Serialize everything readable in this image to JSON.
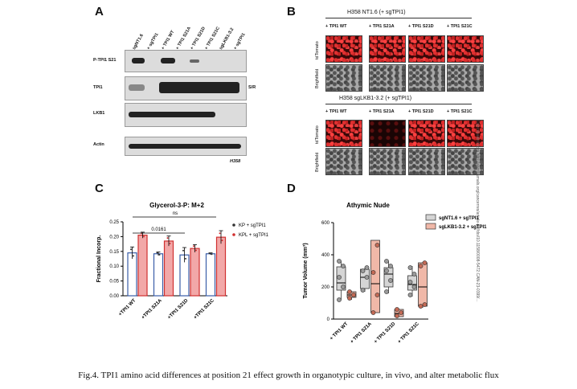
{
  "panels": {
    "a": {
      "letter": "A",
      "lanes": [
        "sgNT1.6",
        "+ sgTPI1",
        "+ TPI1 WT",
        "+ TPI1 S21A",
        "+ TPI1 S21D",
        "+ TPI1 S21C",
        "sgLKB1-3.2",
        "+ sgTPI1"
      ],
      "rows": [
        "P-TPI1 S21",
        "TPI1",
        "LKB1",
        "Actin"
      ],
      "sr_label": "S/R",
      "cell_line": "H358"
    },
    "b": {
      "letter": "B",
      "top_title": "H358 NT1.6 (+ sgTPI1)",
      "bottom_title": "H358 sgLKB1-3.2 (+ sgTPI1)",
      "columns": [
        "+ TPI1 WT",
        "+ TPI1 S21A",
        "+ TPI1 S21D",
        "+ TPI1 S21C"
      ],
      "row_labels": [
        "tdTomato",
        "Brightfield"
      ]
    },
    "c": {
      "letter": "C",
      "title": "Glycerol-3-P: M+2",
      "ylabel": "Fractional Incorp.",
      "ns_label": "ns",
      "p_value": "0.0161",
      "legend": [
        "KP + sgTPI1",
        "KPL + sgTPI1"
      ]
    },
    "d": {
      "letter": "D",
      "title": "Athymic Nude",
      "ylabel": "Tumor Volume (mm³)",
      "legend": [
        "sgNT1.6 + sgTPI1",
        "sgLKB1-3.2 + sgTPI1"
      ]
    }
  },
  "chart_data": [
    {
      "type": "bar",
      "title": "Glycerol-3-P: M+2",
      "ylabel": "Fractional Incorp.",
      "categories": [
        "+TPI1 WT",
        "+TPI1 S21A",
        "+TPI1 S21D",
        "+TPI1 S21C"
      ],
      "yticks": [
        "0.00",
        "0.05",
        "0.10",
        "0.15",
        "0.20",
        "0.25"
      ],
      "ylim": [
        0,
        0.25
      ],
      "series": [
        {
          "name": "KP + sgTPI1",
          "values": [
            0.145,
            0.142,
            0.138,
            0.142
          ],
          "errors": [
            0.02,
            0.006,
            0.025,
            0.003
          ],
          "color": "#ffffff",
          "stroke": "#3a5ea8"
        },
        {
          "name": "KPL + sgTPI1",
          "values": [
            0.205,
            0.185,
            0.16,
            0.198
          ],
          "errors": [
            0.01,
            0.017,
            0.013,
            0.022
          ],
          "color": "#f2a8a8",
          "stroke": "#d03030"
        }
      ],
      "legend_position": "right"
    },
    {
      "type": "box",
      "title": "Athymic Nude",
      "ylabel": "Tumor Volume (mm³)",
      "categories": [
        "+ TPI1 WT",
        "+ TPI1 S21A",
        "+ TPI1 S21D",
        "+ TPI1 S21C"
      ],
      "yticks": [
        "0",
        "200",
        "400",
        "600"
      ],
      "ylim": [
        0,
        600
      ],
      "series": [
        {
          "name": "sgNT1.6 + sgTPI1",
          "color": "#d5d5d5",
          "boxes": [
            {
              "min": 120,
              "q1": 180,
              "median": 225,
              "q3": 325,
              "max": 360,
              "points": [
                120,
                200,
                260,
                330,
                360
              ]
            },
            {
              "min": 170,
              "q1": 190,
              "median": 260,
              "q3": 310,
              "max": 320,
              "points": [
                180,
                260,
                300,
                320
              ]
            },
            {
              "min": 160,
              "q1": 200,
              "median": 280,
              "q3": 320,
              "max": 360,
              "points": [
                170,
                240,
                300,
                330,
                360
              ]
            },
            {
              "min": 140,
              "q1": 180,
              "median": 215,
              "q3": 270,
              "max": 330,
              "points": [
                150,
                200,
                230,
                280,
                320
              ]
            }
          ]
        },
        {
          "name": "sgLKB1-3.2 + sgTPI1",
          "color": "#f0b8a8",
          "boxes": [
            {
              "min": 120,
              "q1": 135,
              "median": 150,
              "q3": 170,
              "max": 175,
              "points": [
                130,
                150,
                170
              ]
            },
            {
              "min": 40,
              "q1": 40,
              "median": 220,
              "q3": 490,
              "max": 490,
              "points": [
                40,
                150,
                290,
                460
              ]
            },
            {
              "min": 15,
              "q1": 15,
              "median": 35,
              "q3": 60,
              "max": 65,
              "points": [
                20,
                40,
                60
              ]
            },
            {
              "min": 70,
              "q1": 80,
              "median": 200,
              "q3": 350,
              "max": 355,
              "points": [
                80,
                90,
                330,
                350
              ]
            }
          ]
        }
      ],
      "legend_position": "top-right"
    }
  ],
  "caption": "Fig.4. TPI1 amino acid differences at position 21 effect growth in organotypic culture, in vivo, and alter metabolic flux",
  "side_text": "Downloaded from http://aacrjournals.org/cancerres/article-pdf/doi/10.1158/0008-5472.CAN-23-0399/..."
}
